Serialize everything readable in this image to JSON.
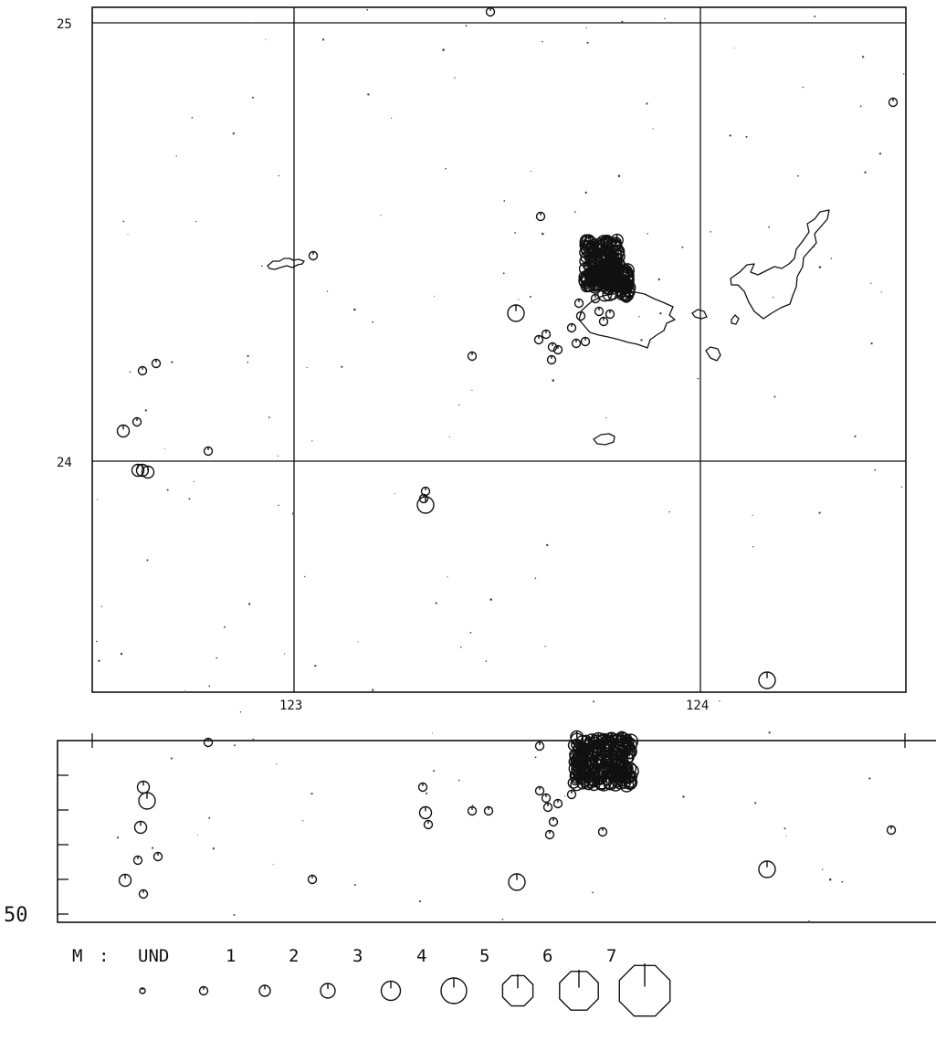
{
  "map": {
    "lat_labels": [
      "25",
      "24"
    ],
    "lon_labels": [
      "123",
      "124"
    ]
  },
  "section": {
    "depth_label": "50"
  },
  "legend": {
    "prefix": "M",
    "separator": ":",
    "classes": [
      "UND",
      "1",
      "2",
      "3",
      "4",
      "5",
      "6",
      "7"
    ]
  },
  "events_map": [
    [
      537,
      13,
      0
    ],
    [
      978,
      112,
      0
    ],
    [
      592,
      237,
      0
    ],
    [
      343,
      280,
      0
    ],
    [
      565,
      343,
      2
    ],
    [
      598,
      366,
      0
    ],
    [
      590,
      372,
      0
    ],
    [
      605,
      380,
      0
    ],
    [
      611,
      383,
      0
    ],
    [
      604,
      394,
      0
    ],
    [
      517,
      390,
      0
    ],
    [
      631,
      376,
      0
    ],
    [
      641,
      374,
      0
    ],
    [
      626,
      359,
      0
    ],
    [
      636,
      346,
      0
    ],
    [
      634,
      332,
      0
    ],
    [
      652,
      327,
      0
    ],
    [
      656,
      341,
      0
    ],
    [
      668,
      344,
      0
    ],
    [
      661,
      352,
      0
    ],
    [
      156,
      406,
      0
    ],
    [
      171,
      398,
      0
    ],
    [
      135,
      472,
      1
    ],
    [
      150,
      462,
      0
    ],
    [
      228,
      494,
      0
    ],
    [
      151,
      515,
      1
    ],
    [
      156,
      515,
      1
    ],
    [
      162,
      517,
      1
    ],
    [
      466,
      538,
      0
    ],
    [
      464,
      546,
      0
    ],
    [
      466,
      553,
      2
    ],
    [
      840,
      745,
      2
    ]
  ],
  "events_section": [
    [
      228,
      813,
      0
    ],
    [
      591,
      817,
      0
    ],
    [
      157,
      862,
      1
    ],
    [
      161,
      877,
      2
    ],
    [
      154,
      906,
      1
    ],
    [
      151,
      942,
      0
    ],
    [
      173,
      938,
      0
    ],
    [
      137,
      964,
      1
    ],
    [
      157,
      979,
      0
    ],
    [
      342,
      963,
      0
    ],
    [
      566,
      966,
      2
    ],
    [
      463,
      862,
      0
    ],
    [
      466,
      890,
      1
    ],
    [
      469,
      903,
      0
    ],
    [
      517,
      888,
      0
    ],
    [
      535,
      888,
      0
    ],
    [
      591,
      866,
      0
    ],
    [
      598,
      874,
      0
    ],
    [
      600,
      884,
      0
    ],
    [
      611,
      880,
      0
    ],
    [
      606,
      900,
      0
    ],
    [
      602,
      914,
      0
    ],
    [
      626,
      870,
      0
    ],
    [
      630,
      855,
      0
    ],
    [
      660,
      911,
      0
    ],
    [
      840,
      952,
      2
    ],
    [
      976,
      909,
      0
    ]
  ]
}
